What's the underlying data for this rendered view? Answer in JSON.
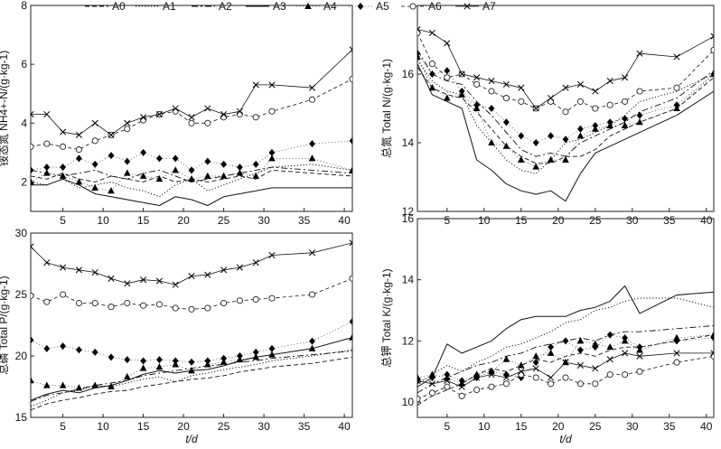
{
  "legend": [
    "A0",
    "A1",
    "A2",
    "A3",
    "A4",
    "A5",
    "A6",
    "A7"
  ],
  "chart_data": [
    {
      "type": "line",
      "panel": "top-left",
      "ylabel_cn": "铵态氮",
      "ylabel": "NH4+-N/(g·kg-1)",
      "ylim": [
        1,
        8
      ],
      "yticks": [
        "2",
        "4",
        "6",
        "8"
      ],
      "xlim": [
        1,
        41
      ],
      "xticks": [
        "5",
        "10",
        "15",
        "20",
        "25",
        "30",
        "35",
        "40"
      ],
      "x": [
        1,
        3,
        5,
        7,
        9,
        11,
        13,
        15,
        17,
        19,
        21,
        23,
        25,
        27,
        29,
        31,
        36,
        41
      ],
      "series": [
        {
          "name": "A0",
          "values": [
            2.2,
            2.1,
            2.3,
            2.1,
            2.0,
            2.2,
            2.1,
            2.0,
            2.2,
            2.0,
            2.1,
            2.0,
            2.1,
            2.2,
            2.1,
            2.4,
            2.3,
            2.2
          ]
        },
        {
          "name": "A1",
          "values": [
            2.0,
            1.9,
            2.1,
            1.8,
            1.9,
            2.0,
            1.8,
            1.7,
            1.5,
            1.9,
            2.1,
            1.7,
            1.9,
            2.1,
            2.3,
            2.5,
            2.6,
            2.4
          ]
        },
        {
          "name": "A2",
          "values": [
            2.4,
            2.3,
            2.2,
            2.3,
            2.4,
            2.2,
            2.1,
            2.3,
            2.4,
            2.2,
            2.0,
            2.1,
            2.2,
            2.3,
            2.4,
            2.5,
            2.4,
            2.3
          ]
        },
        {
          "name": "A3",
          "values": [
            1.9,
            1.9,
            2.1,
            1.9,
            1.6,
            1.5,
            1.4,
            1.3,
            1.2,
            1.5,
            1.4,
            1.2,
            1.5,
            1.6,
            1.7,
            1.8,
            1.8,
            1.8
          ]
        },
        {
          "name": "A4",
          "values": [
            2.0,
            2.3,
            2.2,
            2.0,
            1.8,
            1.7,
            2.3,
            2.2,
            2.1,
            2.4,
            2.1,
            2.2,
            2.2,
            2.3,
            2.2,
            2.8,
            2.8,
            2.4
          ]
        },
        {
          "name": "A5",
          "values": [
            2.4,
            2.5,
            2.5,
            2.8,
            2.6,
            2.9,
            2.7,
            3.0,
            2.8,
            2.8,
            2.4,
            2.7,
            2.6,
            2.5,
            2.6,
            3.0,
            3.3,
            3.4
          ]
        },
        {
          "name": "A6",
          "values": [
            3.2,
            3.3,
            3.2,
            3.1,
            3.4,
            3.6,
            3.8,
            4.1,
            4.3,
            4.4,
            4.0,
            4.0,
            4.2,
            4.3,
            4.2,
            4.4,
            4.8,
            5.5
          ]
        },
        {
          "name": "A7",
          "values": [
            4.3,
            4.3,
            3.7,
            3.6,
            4.0,
            3.6,
            4.0,
            4.2,
            4.3,
            4.5,
            4.2,
            4.5,
            4.3,
            4.4,
            5.3,
            5.3,
            5.2,
            6.5
          ]
        }
      ]
    },
    {
      "type": "line",
      "panel": "top-right",
      "ylabel_cn": "总氮",
      "ylabel": "Total N/(g·kg-1)",
      "ylim": [
        12,
        18
      ],
      "yticks": [
        "12",
        "14",
        "16"
      ],
      "xlim": [
        1,
        41
      ],
      "xticks": [
        "5",
        "10",
        "15",
        "20",
        "25",
        "30",
        "35",
        "40"
      ],
      "x": [
        1,
        3,
        5,
        7,
        9,
        11,
        13,
        15,
        17,
        19,
        21,
        23,
        25,
        27,
        29,
        31,
        36,
        41
      ],
      "series": [
        {
          "name": "A0",
          "values": [
            16.2,
            15.6,
            15.4,
            15.3,
            14.9,
            14.4,
            13.9,
            13.6,
            13.4,
            13.4,
            13.6,
            13.6,
            13.8,
            14.2,
            14.4,
            14.6,
            15.0,
            15.9
          ]
        },
        {
          "name": "A1",
          "values": [
            16.4,
            15.8,
            15.5,
            15.4,
            14.5,
            14.0,
            13.5,
            13.2,
            13.1,
            13.5,
            14.0,
            14.1,
            14.3,
            14.5,
            14.8,
            15.2,
            15.5,
            16.0
          ]
        },
        {
          "name": "A2",
          "values": [
            16.7,
            16.0,
            15.8,
            15.7,
            15.2,
            14.8,
            14.3,
            13.8,
            13.6,
            13.7,
            13.6,
            14.0,
            14.2,
            14.4,
            14.6,
            14.9,
            15.3,
            16.1
          ]
        },
        {
          "name": "A3",
          "values": [
            16.3,
            15.4,
            15.2,
            15.0,
            13.5,
            13.2,
            12.8,
            12.6,
            12.5,
            12.6,
            12.3,
            13.1,
            13.7,
            13.9,
            14.1,
            14.3,
            14.8,
            15.5
          ]
        },
        {
          "name": "A4",
          "values": [
            16.5,
            15.6,
            15.3,
            15.4,
            15.0,
            14.0,
            13.9,
            13.5,
            13.3,
            13.5,
            13.5,
            14.2,
            14.4,
            14.5,
            14.5,
            14.6,
            15.0,
            16.0
          ]
        },
        {
          "name": "A5",
          "values": [
            16.6,
            16.0,
            16.1,
            15.5,
            15.1,
            15.0,
            14.6,
            14.2,
            14.0,
            14.2,
            14.1,
            14.4,
            14.5,
            14.6,
            14.7,
            14.8,
            15.1,
            16.0
          ]
        },
        {
          "name": "A6",
          "values": [
            17.2,
            16.3,
            15.9,
            16.0,
            15.7,
            15.5,
            15.3,
            15.2,
            15.0,
            15.2,
            14.9,
            15.2,
            15.0,
            15.1,
            15.2,
            15.5,
            15.6,
            16.7
          ]
        },
        {
          "name": "A7",
          "values": [
            17.3,
            17.2,
            16.9,
            16.0,
            15.9,
            15.8,
            15.7,
            15.6,
            15.0,
            15.3,
            15.6,
            15.7,
            15.5,
            15.8,
            15.9,
            16.6,
            16.5,
            17.1
          ]
        }
      ]
    },
    {
      "type": "line",
      "panel": "bottom-left",
      "ylabel_cn": "总磷",
      "ylabel": "Total P/(g·kg-1)",
      "ylim": [
        15,
        30
      ],
      "yticks": [
        "15",
        "20",
        "25",
        "30"
      ],
      "xlim": [
        1,
        41
      ],
      "xticks": [
        "5",
        "10",
        "15",
        "20",
        "25",
        "30",
        "35",
        "40"
      ],
      "xlabel": "t/d",
      "x": [
        1,
        3,
        5,
        7,
        9,
        11,
        13,
        15,
        17,
        19,
        21,
        23,
        25,
        27,
        29,
        31,
        36,
        41
      ],
      "series": [
        {
          "name": "A0",
          "values": [
            15.6,
            16.1,
            16.4,
            16.6,
            16.9,
            17.1,
            17.2,
            17.5,
            17.7,
            17.9,
            18.1,
            18.2,
            18.4,
            18.7,
            18.9,
            19.1,
            19.4,
            19.9
          ]
        },
        {
          "name": "A1",
          "values": [
            15.9,
            16.4,
            17.0,
            17.2,
            17.6,
            17.5,
            17.8,
            18.1,
            18.3,
            17.9,
            18.4,
            18.6,
            18.9,
            19.1,
            19.3,
            19.6,
            20.0,
            20.5
          ]
        },
        {
          "name": "A2",
          "values": [
            16.3,
            16.8,
            17.0,
            17.3,
            17.6,
            17.8,
            18.0,
            18.4,
            18.6,
            18.8,
            19.0,
            19.2,
            19.3,
            19.5,
            19.6,
            19.8,
            20.1,
            20.4
          ]
        },
        {
          "name": "A3",
          "values": [
            16.4,
            16.9,
            17.2,
            17.0,
            17.4,
            17.6,
            18.0,
            18.5,
            18.8,
            18.6,
            18.8,
            18.9,
            19.2,
            19.6,
            19.9,
            20.1,
            20.6,
            21.5
          ]
        },
        {
          "name": "A4",
          "values": [
            18.0,
            17.6,
            17.6,
            17.4,
            17.6,
            17.5,
            18.3,
            19.0,
            19.1,
            19.3,
            18.8,
            19.3,
            19.5,
            19.7,
            19.9,
            20.1,
            20.6,
            21.5
          ]
        },
        {
          "name": "A5",
          "values": [
            21.3,
            20.6,
            20.8,
            20.5,
            20.3,
            19.9,
            19.7,
            19.6,
            19.7,
            19.6,
            19.5,
            19.6,
            19.8,
            20.0,
            20.3,
            20.6,
            21.2,
            22.8
          ]
        },
        {
          "name": "A6",
          "values": [
            24.9,
            24.4,
            25.0,
            24.3,
            24.3,
            24.0,
            24.3,
            24.1,
            24.2,
            23.9,
            23.8,
            23.9,
            24.3,
            24.5,
            24.6,
            24.7,
            25.0,
            26.3
          ]
        },
        {
          "name": "A7",
          "values": [
            28.9,
            27.6,
            27.2,
            27.0,
            26.8,
            26.3,
            25.9,
            26.2,
            26.1,
            25.8,
            26.5,
            26.6,
            27.0,
            27.2,
            27.6,
            28.2,
            28.4,
            29.2
          ]
        }
      ]
    },
    {
      "type": "line",
      "panel": "bottom-right",
      "ylabel_cn": "总钾",
      "ylabel": "Total K/(g·kg-1)",
      "ylim": [
        9.5,
        16
      ],
      "yticks": [
        "10",
        "12",
        "14",
        "16"
      ],
      "xlim": [
        1,
        41
      ],
      "xticks": [
        "5",
        "10",
        "15",
        "20",
        "25",
        "30",
        "35",
        "40"
      ],
      "xlabel": "t/d",
      "x": [
        1,
        3,
        5,
        7,
        9,
        11,
        13,
        15,
        17,
        19,
        21,
        23,
        25,
        27,
        29,
        31,
        36,
        41
      ],
      "series": [
        {
          "name": "A0",
          "values": [
            9.9,
            10.2,
            10.4,
            10.6,
            10.9,
            11.1,
            11.0,
            11.2,
            11.4,
            11.3,
            11.5,
            11.6,
            11.5,
            11.7,
            11.8,
            11.8,
            12.0,
            12.2
          ]
        },
        {
          "name": "A1",
          "values": [
            10.6,
            10.9,
            11.2,
            11.0,
            11.3,
            11.5,
            11.8,
            11.9,
            12.1,
            12.3,
            12.6,
            12.7,
            13.0,
            13.1,
            13.3,
            13.4,
            13.4,
            13.1
          ]
        },
        {
          "name": "A2",
          "values": [
            10.3,
            10.6,
            10.8,
            11.0,
            11.2,
            11.3,
            11.5,
            11.6,
            11.8,
            11.9,
            12.0,
            12.1,
            12.0,
            12.2,
            12.3,
            12.3,
            12.4,
            12.5
          ]
        },
        {
          "name": "A3",
          "values": [
            10.5,
            10.8,
            11.9,
            11.6,
            11.8,
            12.0,
            12.4,
            12.7,
            12.8,
            12.8,
            12.8,
            13.0,
            13.1,
            13.3,
            13.8,
            12.9,
            13.5,
            13.6
          ]
        },
        {
          "name": "A4",
          "values": [
            10.8,
            10.9,
            10.8,
            10.6,
            10.9,
            11.0,
            11.4,
            11.2,
            11.5,
            11.6,
            11.3,
            12.0,
            11.9,
            11.8,
            12.0,
            11.7,
            12.1,
            12.2
          ]
        },
        {
          "name": "A5",
          "values": [
            10.7,
            10.8,
            10.9,
            10.7,
            10.8,
            11.0,
            10.9,
            10.8,
            11.3,
            11.8,
            12.0,
            11.7,
            11.8,
            12.2,
            12.1,
            11.8,
            12.0,
            12.1
          ]
        },
        {
          "name": "A6",
          "values": [
            10.1,
            10.3,
            10.5,
            10.2,
            10.4,
            10.5,
            10.6,
            10.9,
            10.8,
            10.6,
            10.8,
            10.6,
            10.6,
            10.9,
            10.9,
            11.0,
            11.3,
            11.5
          ]
        },
        {
          "name": "A7",
          "values": [
            10.7,
            10.6,
            10.7,
            10.5,
            10.8,
            10.9,
            10.8,
            11.0,
            11.1,
            10.8,
            11.3,
            11.2,
            11.1,
            11.4,
            11.6,
            11.5,
            11.6,
            11.6
          ]
        }
      ]
    }
  ]
}
